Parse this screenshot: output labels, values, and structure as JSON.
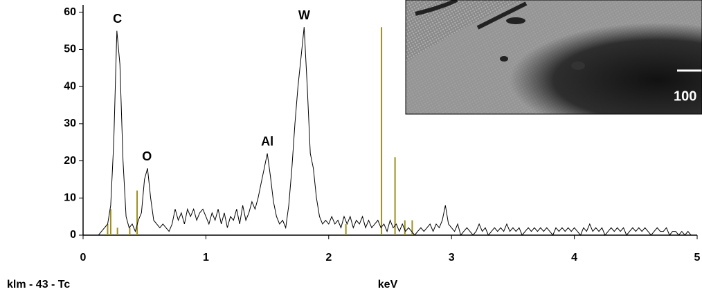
{
  "chart_data": {
    "type": "line",
    "title": "klm - 43 - Tc",
    "x_label": "keV",
    "inset_label": "100",
    "color": "#000000",
    "marker_color": "#9c8f1e",
    "xlim": [
      0,
      5
    ],
    "ylim": [
      0,
      62
    ],
    "xticks": [
      0,
      1,
      2,
      3,
      4,
      5
    ],
    "yticks": [
      0,
      10,
      20,
      30,
      40,
      50,
      60
    ],
    "x": [
      0,
      0.025,
      0.05,
      0.075,
      0.1,
      0.125,
      0.15,
      0.175,
      0.2,
      0.225,
      0.25,
      0.275,
      0.3,
      0.325,
      0.35,
      0.375,
      0.4,
      0.425,
      0.45,
      0.475,
      0.5,
      0.525,
      0.55,
      0.575,
      0.6,
      0.625,
      0.65,
      0.675,
      0.7,
      0.725,
      0.75,
      0.775,
      0.8,
      0.825,
      0.85,
      0.875,
      0.9,
      0.925,
      0.95,
      0.975,
      1,
      1.025,
      1.05,
      1.075,
      1.1,
      1.125,
      1.15,
      1.175,
      1.2,
      1.225,
      1.25,
      1.275,
      1.3,
      1.325,
      1.35,
      1.375,
      1.4,
      1.425,
      1.45,
      1.475,
      1.5,
      1.525,
      1.55,
      1.575,
      1.6,
      1.625,
      1.65,
      1.675,
      1.7,
      1.725,
      1.75,
      1.775,
      1.8,
      1.825,
      1.85,
      1.875,
      1.9,
      1.925,
      1.95,
      1.975,
      2,
      2.025,
      2.05,
      2.075,
      2.1,
      2.125,
      2.15,
      2.175,
      2.2,
      2.225,
      2.25,
      2.275,
      2.3,
      2.325,
      2.35,
      2.375,
      2.4,
      2.425,
      2.45,
      2.475,
      2.5,
      2.525,
      2.55,
      2.575,
      2.6,
      2.625,
      2.65,
      2.675,
      2.7,
      2.725,
      2.75,
      2.775,
      2.8,
      2.825,
      2.85,
      2.875,
      2.9,
      2.925,
      2.95,
      2.975,
      3,
      3.025,
      3.05,
      3.075,
      3.1,
      3.125,
      3.15,
      3.175,
      3.2,
      3.225,
      3.25,
      3.275,
      3.3,
      3.325,
      3.35,
      3.375,
      3.4,
      3.425,
      3.45,
      3.475,
      3.5,
      3.525,
      3.55,
      3.575,
      3.6,
      3.625,
      3.65,
      3.675,
      3.7,
      3.725,
      3.75,
      3.775,
      3.8,
      3.825,
      3.85,
      3.875,
      3.9,
      3.925,
      3.95,
      3.975,
      4,
      4.025,
      4.05,
      4.075,
      4.1,
      4.125,
      4.15,
      4.175,
      4.2,
      4.225,
      4.25,
      4.275,
      4.3,
      4.325,
      4.35,
      4.375,
      4.4,
      4.425,
      4.45,
      4.475,
      4.5,
      4.525,
      4.55,
      4.575,
      4.6,
      4.625,
      4.65,
      4.675,
      4.7,
      4.725,
      4.75,
      4.775,
      4.8,
      4.825,
      4.85,
      4.875,
      4.9,
      4.925,
      4.95,
      4.975,
      5
    ],
    "values": [
      0,
      0,
      0,
      0,
      0,
      0,
      1,
      2,
      3,
      8,
      25,
      55,
      46,
      20,
      5,
      2,
      3,
      1,
      4,
      6,
      15,
      18,
      10,
      4,
      3,
      2,
      3,
      2,
      1,
      3,
      7,
      4,
      6,
      3,
      7,
      5,
      7,
      4,
      6,
      7,
      5,
      3,
      6,
      4,
      7,
      3,
      6,
      2,
      5,
      4,
      7,
      3,
      8,
      4,
      6,
      9,
      7,
      10,
      14,
      18,
      22,
      16,
      9,
      5,
      3,
      4,
      2,
      8,
      18,
      30,
      40,
      48,
      56,
      40,
      22,
      18,
      10,
      5,
      3,
      4,
      3,
      5,
      3,
      4,
      2,
      5,
      3,
      5,
      2,
      4,
      3,
      5,
      2,
      4,
      2,
      3,
      4,
      2,
      3,
      1,
      4,
      2,
      3,
      1,
      3,
      1,
      2,
      1,
      0,
      1,
      2,
      1,
      2,
      3,
      1,
      3,
      2,
      4,
      8,
      3,
      2,
      1,
      3,
      0,
      1,
      2,
      1,
      0,
      1,
      3,
      1,
      2,
      0,
      1,
      2,
      1,
      2,
      1,
      3,
      1,
      2,
      1,
      2,
      0,
      1,
      2,
      1,
      2,
      1,
      2,
      1,
      2,
      1,
      0,
      2,
      1,
      2,
      1,
      2,
      1,
      2,
      1,
      0,
      2,
      1,
      3,
      1,
      2,
      1,
      2,
      0,
      1,
      2,
      1,
      2,
      1,
      2,
      0,
      1,
      2,
      1,
      2,
      1,
      2,
      1,
      0,
      1,
      2,
      1,
      1,
      2,
      0,
      1,
      1,
      0,
      1,
      0,
      1,
      0,
      0,
      0
    ],
    "markers": {
      "x": [
        0.2,
        0.225,
        0.28,
        0.38,
        0.44,
        2.14,
        2.43,
        2.54,
        2.62,
        2.68
      ],
      "values": [
        3,
        7,
        2,
        2,
        12,
        3,
        56,
        21,
        4,
        4
      ]
    },
    "annotations": [
      {
        "text": "C",
        "x": 0.28,
        "y": 58
      },
      {
        "text": "O",
        "x": 0.52,
        "y": 21
      },
      {
        "text": "Al",
        "x": 1.5,
        "y": 25
      },
      {
        "text": "W",
        "x": 1.8,
        "y": 59
      }
    ]
  }
}
